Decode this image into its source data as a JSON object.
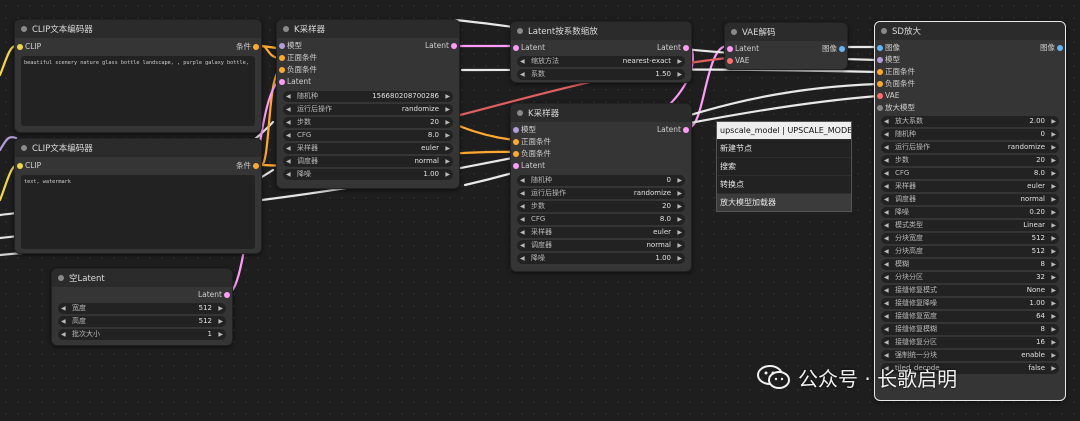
{
  "colors": {
    "canvas": "#1e1e1e",
    "node_bg": "#353535",
    "clip_wire": "#f2d64b",
    "latent_wire": "#ff9cf9",
    "model_wire": "#b39ddb",
    "vae_wire": "#ff6e6e",
    "image_wire": "#64b5f6",
    "cond_wire": "#ffa931",
    "white_wire": "#e8e8e8"
  },
  "clip1": {
    "title": "CLIP文本编码器",
    "in_clip": "CLIP",
    "out_cond": "条件",
    "text": "beautiful scenery nature glass bottle landscape, , purple galaxy bottle,"
  },
  "clip2": {
    "title": "CLIP文本编码器",
    "in_clip": "CLIP",
    "out_cond": "条件",
    "text": "text, watermark"
  },
  "ksampler1": {
    "title": "K采样器",
    "inputs": [
      "模型",
      "正面条件",
      "负面条件",
      "Latent"
    ],
    "out": "Latent",
    "widgets": [
      {
        "name": "随机种",
        "value": "156680208700286"
      },
      {
        "name": "运行后操作",
        "value": "randomize"
      },
      {
        "name": "步数",
        "value": "20"
      },
      {
        "name": "CFG",
        "value": "8.0"
      },
      {
        "name": "采样器",
        "value": "euler"
      },
      {
        "name": "调度器",
        "value": "normal"
      },
      {
        "name": "降噪",
        "value": "1.00"
      }
    ]
  },
  "latent_upscale": {
    "title": "Latent按系数缩放",
    "in": "Latent",
    "out": "Latent",
    "widgets": [
      {
        "name": "缩放方法",
        "value": "nearest-exact"
      },
      {
        "name": "系数",
        "value": "1.50"
      }
    ]
  },
  "ksampler2": {
    "title": "K采样器",
    "inputs": [
      "模型",
      "正面条件",
      "负面条件",
      "Latent"
    ],
    "out": "Latent",
    "widgets": [
      {
        "name": "随机种",
        "value": "0"
      },
      {
        "name": "运行后操作",
        "value": "randomize"
      },
      {
        "name": "步数",
        "value": "20"
      },
      {
        "name": "CFG",
        "value": "8.0"
      },
      {
        "name": "采样器",
        "value": "euler"
      },
      {
        "name": "调度器",
        "value": "normal"
      },
      {
        "name": "降噪",
        "value": "1.00"
      }
    ]
  },
  "vae_decode": {
    "title": "VAE解码",
    "inputs": [
      "Latent",
      "VAE"
    ],
    "out": "图像"
  },
  "empty_latent": {
    "title": "空Latent",
    "out": "Latent",
    "widgets": [
      {
        "name": "宽度",
        "value": "512"
      },
      {
        "name": "高度",
        "value": "512"
      },
      {
        "name": "批次大小",
        "value": "1"
      }
    ]
  },
  "sd_upscale": {
    "title": "SD放大",
    "inputs": [
      "图像",
      "模型",
      "正面条件",
      "负面条件",
      "VAE",
      "放大模型"
    ],
    "out": "图像",
    "widgets": [
      {
        "name": "放大系数",
        "value": "2.00"
      },
      {
        "name": "随机种",
        "value": "0"
      },
      {
        "name": "运行后操作",
        "value": "randomize"
      },
      {
        "name": "步数",
        "value": "20"
      },
      {
        "name": "CFG",
        "value": "8.0"
      },
      {
        "name": "采样器",
        "value": "euler"
      },
      {
        "name": "调度器",
        "value": "normal"
      },
      {
        "name": "降噪",
        "value": "0.20"
      },
      {
        "name": "模式类型",
        "value": "Linear"
      },
      {
        "name": "分块宽度",
        "value": "512"
      },
      {
        "name": "分块高度",
        "value": "512"
      },
      {
        "name": "模糊",
        "value": "8"
      },
      {
        "name": "分块分区",
        "value": "32"
      },
      {
        "name": "接缝修复模式",
        "value": "None"
      },
      {
        "name": "接缝修复降噪",
        "value": "1.00"
      },
      {
        "name": "接缝修复宽度",
        "value": "64"
      },
      {
        "name": "接缝修复模糊",
        "value": "8"
      },
      {
        "name": "接缝修复分区",
        "value": "16"
      },
      {
        "name": "强制统一分块",
        "value": "enable"
      },
      {
        "name": "tiled_decode",
        "value": "false"
      }
    ]
  },
  "context_menu": {
    "title": "upscale_model | UPSCALE_MODEL",
    "items": [
      "新建节点",
      "搜索",
      "转换点",
      "放大模型加载器"
    ]
  },
  "watermark": {
    "text": "公众号 · 长歌启明"
  }
}
